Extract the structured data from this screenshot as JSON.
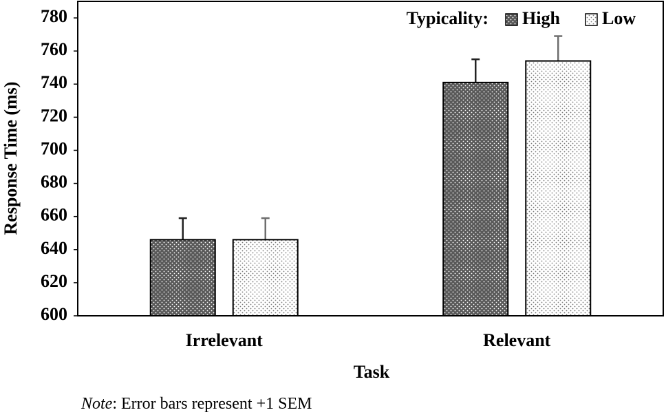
{
  "chart_data": {
    "type": "bar",
    "y_label": "Response Time (ms)",
    "x_label": "Task",
    "legend_title": "Typicality:",
    "legend": "top-right",
    "categories": [
      "Irrelevant",
      "Relevant"
    ],
    "series": [
      {
        "name": "High",
        "color": "#595959",
        "dot_color": "#ffffff",
        "error_color": "#222222",
        "values": [
          646,
          741
        ],
        "errors": [
          13,
          14
        ]
      },
      {
        "name": "Low",
        "color": "#ffffff",
        "dot_color": "#7a7a7a",
        "error_color": "#6e6e6e",
        "values": [
          646,
          754
        ],
        "errors": [
          13,
          15
        ]
      }
    ],
    "ylim": [
      600,
      790
    ],
    "yticks": [
      600,
      620,
      640,
      660,
      680,
      700,
      720,
      740,
      760,
      780
    ],
    "note": {
      "label": "Note",
      "text": ": Error bars represent +1 SEM"
    }
  }
}
